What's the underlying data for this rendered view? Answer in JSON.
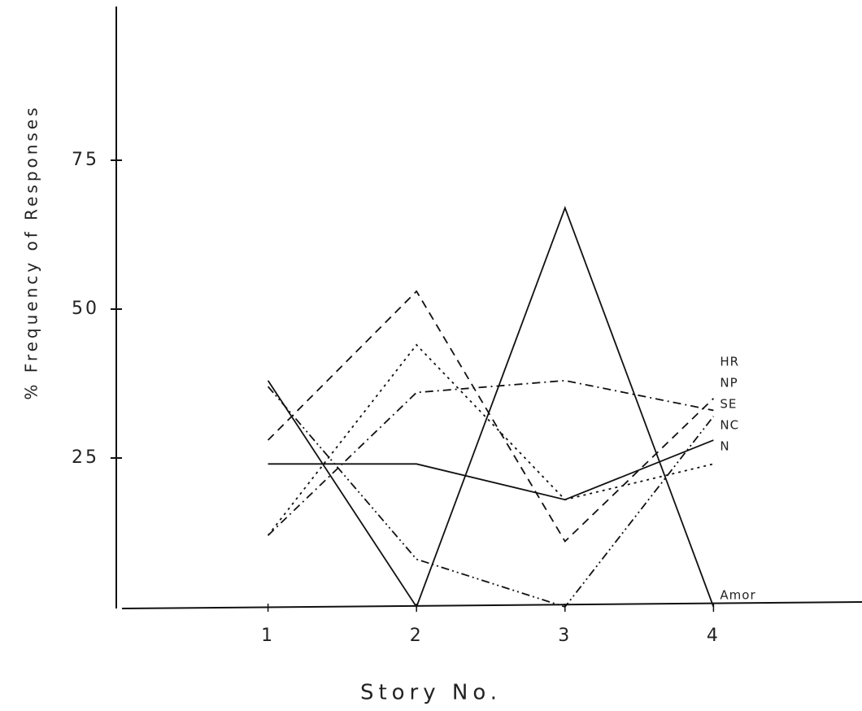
{
  "chart_data": {
    "type": "line",
    "x_label": "Story No.",
    "y_label": "% Frequency of Responses",
    "x": [
      1,
      2,
      3,
      4
    ],
    "xlim": [
      0,
      5
    ],
    "xticks": [
      1,
      2,
      3,
      4
    ],
    "ylim": [
      0,
      100
    ],
    "yticks": [
      25,
      50,
      75
    ],
    "series": [
      {
        "name": "HR",
        "color": "#111111",
        "dash": "10 7",
        "values": [
          28,
          53,
          11,
          35
        ]
      },
      {
        "name": "NP",
        "color": "#111111",
        "dash": "10 5 2 5",
        "values": [
          12,
          36,
          38,
          33
        ]
      },
      {
        "name": "SE",
        "color": "#111111",
        "dash": "10 4 2 4 2 4",
        "values": [
          37,
          8,
          0,
          32
        ]
      },
      {
        "name": "NC",
        "color": "#111111",
        "dash": "none",
        "values": [
          24,
          24,
          18,
          28
        ]
      },
      {
        "name": "N",
        "color": "#111111",
        "dash": "3 5",
        "values": [
          12,
          44,
          18,
          24
        ]
      },
      {
        "name": "Amor",
        "color": "#111111",
        "dash": "none",
        "values": [
          38,
          0,
          67,
          0
        ]
      }
    ]
  }
}
